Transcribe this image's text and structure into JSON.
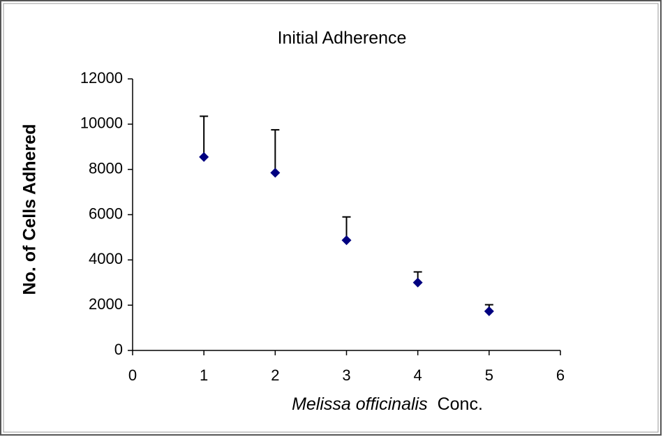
{
  "chart_data": {
    "type": "scatter",
    "title": "Initial Adherence",
    "xlabel": [
      "Melissa officinalis",
      "Conc."
    ],
    "ylabel": "No. of Cells Adhered",
    "x": [
      1,
      2,
      3,
      4,
      5
    ],
    "values": [
      8550,
      7850,
      4870,
      3000,
      1730
    ],
    "errors": [
      1800,
      1900,
      1030,
      470,
      290
    ],
    "color": "#000080",
    "xlim": [
      0,
      6
    ],
    "xticks": [
      0,
      1,
      2,
      3,
      4,
      5,
      6
    ],
    "ylim": [
      0,
      12000
    ],
    "yticks": [
      0,
      2000,
      4000,
      6000,
      8000,
      10000,
      12000
    ]
  }
}
